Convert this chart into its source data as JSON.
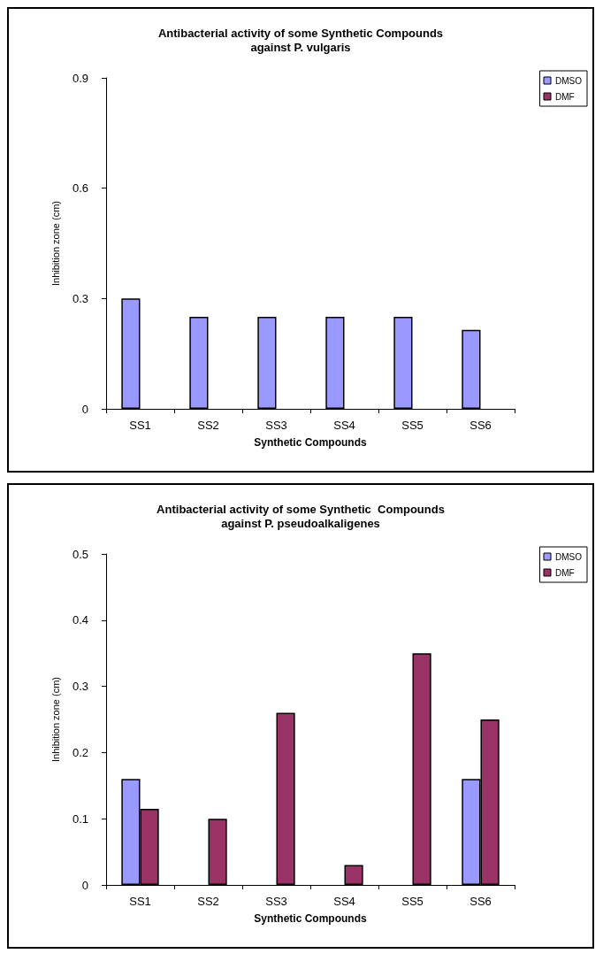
{
  "chart_data": [
    {
      "type": "bar",
      "title": "Antibacterial activity of some Synthetic Compounds\nagainst P. vulgaris",
      "xlabel": "Synthetic Compounds",
      "ylabel": "Inhibition zone (cm)",
      "categories": [
        "SS1",
        "SS2",
        "SS3",
        "SS4",
        "SS5",
        "SS6"
      ],
      "series": [
        {
          "name": "DMSO",
          "color": "#9999ff",
          "values": [
            0.3,
            0.25,
            0.25,
            0.25,
            0.25,
            0.215
          ]
        },
        {
          "name": "DMF",
          "color": "#993366",
          "values": [
            null,
            null,
            null,
            null,
            null,
            null
          ]
        }
      ],
      "ylim": [
        0,
        0.9
      ],
      "yticks": [
        0,
        0.3,
        0.6,
        0.9
      ],
      "grid": false,
      "legend": "top right"
    },
    {
      "type": "bar",
      "title": "Antibacterial activity of some Synthetic  Compounds\nagainst P. pseudoalkaligenes",
      "xlabel": "Synthetic Compounds",
      "ylabel": "Inhibition zone (cm)",
      "categories": [
        "SS1",
        "SS2",
        "SS3",
        "SS4",
        "SS5",
        "SS6"
      ],
      "series": [
        {
          "name": "DMSO",
          "color": "#9999ff",
          "values": [
            0.16,
            null,
            null,
            null,
            null,
            0.16
          ]
        },
        {
          "name": "DMF",
          "color": "#993366",
          "values": [
            0.115,
            0.1,
            0.26,
            0.03,
            0.35,
            0.25
          ]
        }
      ],
      "ylim": [
        0,
        0.5
      ],
      "yticks": [
        0,
        0.1,
        0.2,
        0.3,
        0.4,
        0.5
      ],
      "grid": false,
      "legend": "top right"
    }
  ]
}
